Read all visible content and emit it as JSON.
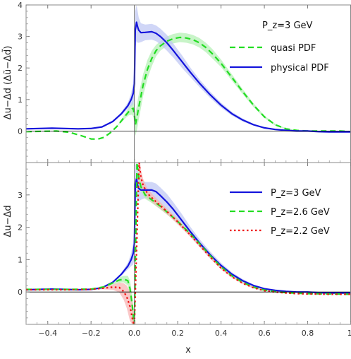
{
  "chart_data": [
    {
      "type": "line",
      "panel": "top",
      "ylabel": "Δu−Δd (Δũ−Δd̃)",
      "xlabel": "",
      "xlim": [
        -0.5,
        1.0
      ],
      "ylim": [
        -1.0,
        4.0
      ],
      "x_ticks": [
        -0.4,
        -0.2,
        0.0,
        0.2,
        0.4,
        0.6,
        0.8,
        1.0
      ],
      "y_ticks": [
        0,
        1,
        2,
        3,
        4
      ],
      "y_tick_labels": [
        "0",
        "1",
        "2",
        "3",
        "4"
      ],
      "legend_title": "P_z=3 GeV",
      "legend_position": "top-right",
      "grid": false,
      "series": [
        {
          "name": "quasi PDF",
          "color": "#22dd22",
          "style": "dashed",
          "band_color": "#b6f0b6",
          "x": [
            -0.5,
            -0.42,
            -0.36,
            -0.3,
            -0.24,
            -0.2,
            -0.17,
            -0.14,
            -0.11,
            -0.08,
            -0.06,
            -0.04,
            -0.025,
            -0.012,
            -0.005,
            0.0,
            0.005,
            0.012,
            0.02,
            0.03,
            0.04,
            0.06,
            0.08,
            0.1,
            0.12,
            0.15,
            0.18,
            0.21,
            0.24,
            0.27,
            0.3,
            0.33,
            0.36,
            0.4,
            0.45,
            0.5,
            0.55,
            0.6,
            0.65,
            0.7,
            0.75,
            0.8,
            0.85,
            0.9,
            0.95,
            1.0
          ],
          "values": [
            -0.02,
            -0.01,
            0.0,
            -0.04,
            -0.16,
            -0.25,
            -0.26,
            -0.2,
            -0.05,
            0.15,
            0.32,
            0.5,
            0.62,
            0.7,
            0.72,
            0.5,
            0.2,
            0.45,
            0.75,
            1.1,
            1.45,
            1.95,
            2.3,
            2.55,
            2.7,
            2.85,
            2.93,
            2.97,
            2.95,
            2.9,
            2.8,
            2.65,
            2.45,
            2.15,
            1.7,
            1.25,
            0.82,
            0.45,
            0.2,
            0.07,
            0.02,
            0.0,
            0.0,
            0.0,
            0.0,
            -0.02
          ],
          "band": [
            0.0,
            0.0,
            0.0,
            0.0,
            0.0,
            0.0,
            0.0,
            0.0,
            0.0,
            0.0,
            0.05,
            0.08,
            0.12,
            0.18,
            0.25,
            0.3,
            0.35,
            0.4,
            0.4,
            0.38,
            0.35,
            0.3,
            0.25,
            0.18,
            0.15,
            0.15,
            0.15,
            0.15,
            0.15,
            0.15,
            0.15,
            0.15,
            0.15,
            0.12,
            0.1,
            0.08,
            0.06,
            0.04,
            0.03,
            0.02,
            0.01,
            0.0,
            0.0,
            0.0,
            0.0,
            0.0
          ]
        },
        {
          "name": "physical PDF",
          "color": "#1414dc",
          "style": "solid",
          "band_color": "#c0c8f4",
          "x": [
            -0.5,
            -0.44,
            -0.38,
            -0.32,
            -0.26,
            -0.2,
            -0.15,
            -0.1,
            -0.06,
            -0.03,
            -0.015,
            -0.005,
            0.0,
            0.004,
            0.01,
            0.015,
            0.02,
            0.03,
            0.05,
            0.08,
            0.1,
            0.12,
            0.15,
            0.18,
            0.22,
            0.26,
            0.3,
            0.35,
            0.4,
            0.45,
            0.5,
            0.55,
            0.6,
            0.65,
            0.7,
            0.75,
            0.8,
            0.85,
            0.9,
            1.0
          ],
          "values": [
            0.07,
            0.08,
            0.09,
            0.08,
            0.07,
            0.08,
            0.13,
            0.3,
            0.55,
            0.8,
            1.0,
            1.2,
            1.5,
            3.2,
            3.45,
            3.3,
            3.2,
            3.12,
            3.13,
            3.15,
            3.1,
            3.0,
            2.8,
            2.55,
            2.2,
            1.85,
            1.52,
            1.15,
            0.82,
            0.55,
            0.35,
            0.2,
            0.1,
            0.05,
            0.02,
            0.0,
            0.0,
            -0.02,
            -0.03,
            -0.03
          ],
          "band": [
            0.0,
            0.0,
            0.0,
            0.0,
            0.0,
            0.0,
            0.0,
            0.0,
            0.05,
            0.1,
            0.2,
            0.35,
            0.5,
            0.6,
            0.6,
            0.5,
            0.4,
            0.3,
            0.25,
            0.25,
            0.25,
            0.25,
            0.25,
            0.22,
            0.2,
            0.15,
            0.12,
            0.1,
            0.08,
            0.06,
            0.05,
            0.03,
            0.02,
            0.01,
            0.0,
            0.0,
            0.0,
            0.0,
            0.0,
            0.0
          ]
        }
      ]
    },
    {
      "type": "line",
      "panel": "bottom",
      "ylabel": "Δu−Δd",
      "xlabel": "x",
      "xlim": [
        -0.5,
        1.0
      ],
      "ylim": [
        -1.0,
        4.0
      ],
      "x_ticks": [
        -0.4,
        -0.2,
        0.0,
        0.2,
        0.4,
        0.6,
        0.8,
        1.0
      ],
      "x_tick_labels": [
        "−0.4",
        "−0.2",
        "0.0",
        "0.2",
        "0.4",
        "0.6",
        "0.8",
        "1."
      ],
      "y_ticks": [
        0,
        1,
        2,
        3
      ],
      "y_tick_labels": [
        "0",
        "1",
        "2",
        "3"
      ],
      "legend_position": "top-right",
      "grid": false,
      "series": [
        {
          "name": "P_z=3 GeV",
          "color": "#1414dc",
          "style": "solid",
          "band_color": "#c0c8f4",
          "x": [
            -0.5,
            -0.44,
            -0.38,
            -0.32,
            -0.26,
            -0.2,
            -0.15,
            -0.1,
            -0.06,
            -0.03,
            -0.015,
            -0.005,
            0.0,
            0.004,
            0.01,
            0.015,
            0.02,
            0.03,
            0.05,
            0.08,
            0.1,
            0.12,
            0.15,
            0.18,
            0.22,
            0.26,
            0.3,
            0.35,
            0.4,
            0.45,
            0.5,
            0.55,
            0.6,
            0.65,
            0.7,
            0.75,
            0.8,
            0.85,
            0.9,
            1.0
          ],
          "values": [
            0.07,
            0.08,
            0.09,
            0.08,
            0.07,
            0.08,
            0.13,
            0.3,
            0.55,
            0.8,
            1.0,
            1.2,
            1.5,
            3.3,
            3.5,
            3.3,
            3.2,
            3.15,
            3.15,
            3.15,
            3.1,
            2.98,
            2.78,
            2.55,
            2.2,
            1.85,
            1.52,
            1.15,
            0.82,
            0.55,
            0.35,
            0.2,
            0.1,
            0.05,
            0.02,
            0.0,
            0.0,
            -0.02,
            -0.03,
            -0.03
          ],
          "band": [
            0.0,
            0.0,
            0.0,
            0.0,
            0.0,
            0.0,
            0.0,
            0.0,
            0.05,
            0.1,
            0.2,
            0.35,
            0.5,
            0.6,
            0.6,
            0.5,
            0.4,
            0.3,
            0.25,
            0.25,
            0.25,
            0.25,
            0.25,
            0.22,
            0.2,
            0.15,
            0.12,
            0.1,
            0.08,
            0.06,
            0.05,
            0.03,
            0.02,
            0.01,
            0.0,
            0.0,
            0.0,
            0.0,
            0.0,
            0.0
          ]
        },
        {
          "name": "P_z=2.6 GeV",
          "color": "#22dd22",
          "style": "dashed",
          "band_color": "#b6f0b6",
          "x": [
            -0.5,
            -0.4,
            -0.3,
            -0.2,
            -0.14,
            -0.1,
            -0.07,
            -0.05,
            -0.03,
            -0.02,
            -0.012,
            -0.006,
            -0.003,
            0.0,
            0.012,
            0.016,
            0.02,
            0.03,
            0.05,
            0.08,
            0.12,
            0.16,
            0.2,
            0.25,
            0.3,
            0.35,
            0.4,
            0.45,
            0.5,
            0.55,
            0.6,
            0.65,
            0.7,
            0.75,
            0.8,
            0.9,
            1.0
          ],
          "values": [
            0.08,
            0.08,
            0.08,
            0.09,
            0.16,
            0.28,
            0.37,
            0.4,
            0.35,
            0.1,
            -0.3,
            -0.65,
            -0.95,
            -1.0,
            4.0,
            3.8,
            3.55,
            3.25,
            3.0,
            2.85,
            2.65,
            2.42,
            2.18,
            1.85,
            1.5,
            1.12,
            0.78,
            0.5,
            0.3,
            0.15,
            0.06,
            0.01,
            -0.02,
            -0.04,
            -0.05,
            -0.06,
            -0.07
          ],
          "band": [
            0.0,
            0.0,
            0.0,
            0.0,
            0.02,
            0.05,
            0.08,
            0.1,
            0.15,
            0.25,
            0.3,
            0.3,
            0.3,
            0.0,
            0.0,
            0.2,
            0.2,
            0.15,
            0.12,
            0.1,
            0.1,
            0.08,
            0.08,
            0.06,
            0.05,
            0.05,
            0.04,
            0.03,
            0.02,
            0.02,
            0.01,
            0.0,
            0.0,
            0.0,
            0.0,
            0.0,
            0.0
          ]
        },
        {
          "name": "P_z=2.2 GeV",
          "color": "#ee1111",
          "style": "dotted",
          "band_color": "#f8b4b4",
          "x": [
            -0.5,
            -0.4,
            -0.3,
            -0.2,
            -0.14,
            -0.1,
            -0.07,
            -0.05,
            -0.035,
            -0.02,
            -0.01,
            -0.003,
            0.0,
            0.022,
            0.026,
            0.03,
            0.04,
            0.06,
            0.09,
            0.12,
            0.16,
            0.2,
            0.25,
            0.3,
            0.35,
            0.4,
            0.45,
            0.5,
            0.55,
            0.6,
            0.65,
            0.7,
            0.75,
            0.8,
            0.9,
            1.0
          ],
          "values": [
            0.07,
            0.07,
            0.07,
            0.08,
            0.12,
            0.15,
            0.14,
            0.02,
            -0.15,
            -0.45,
            -0.8,
            -1.0,
            -1.0,
            4.0,
            3.75,
            3.55,
            3.3,
            3.05,
            2.85,
            2.67,
            2.43,
            2.17,
            1.82,
            1.45,
            1.08,
            0.74,
            0.47,
            0.27,
            0.13,
            0.04,
            0.0,
            -0.03,
            -0.05,
            -0.06,
            -0.07,
            -0.07
          ],
          "band": [
            0.0,
            0.0,
            0.0,
            0.0,
            0.04,
            0.08,
            0.15,
            0.25,
            0.35,
            0.45,
            0.5,
            0.5,
            0.0,
            0.0,
            0.25,
            0.25,
            0.2,
            0.15,
            0.12,
            0.1,
            0.08,
            0.08,
            0.06,
            0.05,
            0.05,
            0.04,
            0.03,
            0.02,
            0.02,
            0.01,
            0.0,
            0.0,
            0.0,
            0.0,
            0.0,
            0.0
          ]
        }
      ]
    }
  ]
}
